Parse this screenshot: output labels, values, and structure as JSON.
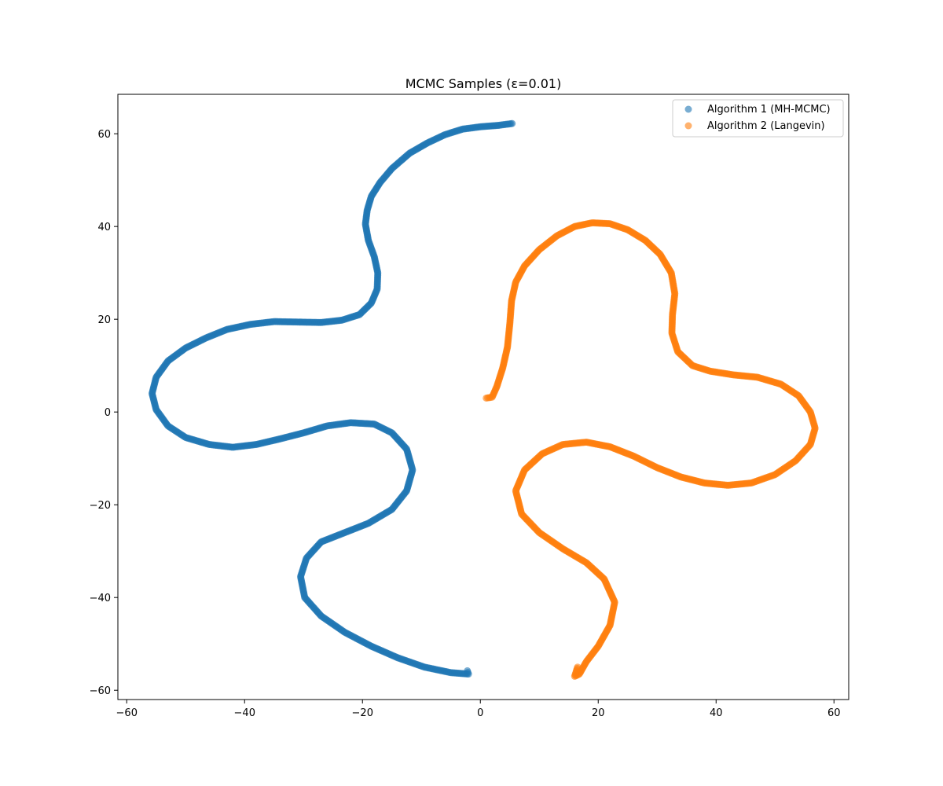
{
  "chart_data": {
    "type": "scatter",
    "title": "MCMC Samples (ε=0.01)",
    "xlabel": "",
    "ylabel": "",
    "xlim": [
      -61.5,
      62.5
    ],
    "ylim": [
      -62,
      68.5
    ],
    "xticks": [
      -60,
      -40,
      -20,
      0,
      20,
      40,
      60
    ],
    "yticks": [
      -60,
      -40,
      -20,
      0,
      20,
      40,
      60
    ],
    "xtick_labels": [
      "−60",
      "−40",
      "−20",
      "0",
      "20",
      "40",
      "60"
    ],
    "ytick_labels": [
      "−60",
      "−40",
      "−20",
      "0",
      "20",
      "40",
      "60"
    ],
    "grid": false,
    "legend_position": "top-right",
    "series": [
      {
        "name": "Algorithm 1 (MH-MCMC)",
        "color": "#1f77b4",
        "alpha": 0.6,
        "points": [
          [
            5.4,
            62.2
          ],
          [
            3.0,
            61.8
          ],
          [
            0.0,
            61.5
          ],
          [
            -3.0,
            61.0
          ],
          [
            -6.0,
            59.8
          ],
          [
            -9.0,
            58.0
          ],
          [
            -12.0,
            55.8
          ],
          [
            -15.0,
            52.5
          ],
          [
            -17.0,
            49.5
          ],
          [
            -18.5,
            46.5
          ],
          [
            -19.2,
            43.5
          ],
          [
            -19.5,
            40.5
          ],
          [
            -19.0,
            37.0
          ],
          [
            -18.0,
            33.5
          ],
          [
            -17.4,
            30.0
          ],
          [
            -17.5,
            26.5
          ],
          [
            -18.5,
            23.5
          ],
          [
            -20.5,
            21.0
          ],
          [
            -23.5,
            19.8
          ],
          [
            -27.0,
            19.3
          ],
          [
            -31.0,
            19.4
          ],
          [
            -35.0,
            19.5
          ],
          [
            -39.0,
            18.9
          ],
          [
            -43.0,
            17.8
          ],
          [
            -46.5,
            16.0
          ],
          [
            -50.0,
            13.8
          ],
          [
            -53.0,
            11.0
          ],
          [
            -55.0,
            7.5
          ],
          [
            -55.7,
            4.0
          ],
          [
            -55.0,
            0.5
          ],
          [
            -53.0,
            -3.0
          ],
          [
            -50.0,
            -5.5
          ],
          [
            -46.0,
            -7.0
          ],
          [
            -42.0,
            -7.6
          ],
          [
            -38.0,
            -7.0
          ],
          [
            -34.0,
            -5.8
          ],
          [
            -30.0,
            -4.5
          ],
          [
            -26.0,
            -3.0
          ],
          [
            -22.0,
            -2.3
          ],
          [
            -18.0,
            -2.6
          ],
          [
            -15.0,
            -4.5
          ],
          [
            -12.5,
            -8.0
          ],
          [
            -11.5,
            -12.5
          ],
          [
            -12.5,
            -17.0
          ],
          [
            -15.0,
            -21.0
          ],
          [
            -19.0,
            -24.0
          ],
          [
            -23.0,
            -26.0
          ],
          [
            -27.0,
            -28.0
          ],
          [
            -29.5,
            -31.5
          ],
          [
            -30.5,
            -35.5
          ],
          [
            -29.8,
            -40.0
          ],
          [
            -27.0,
            -44.0
          ],
          [
            -23.0,
            -47.5
          ],
          [
            -18.5,
            -50.5
          ],
          [
            -14.0,
            -53.0
          ],
          [
            -9.5,
            -55.0
          ],
          [
            -5.0,
            -56.2
          ],
          [
            -2.0,
            -56.5
          ],
          [
            -2.2,
            -55.8
          ]
        ]
      },
      {
        "name": "Algorithm 2 (Langevin)",
        "color": "#ff7f0e",
        "alpha": 0.6,
        "points": [
          [
            1.0,
            3.0
          ],
          [
            2.0,
            3.2
          ],
          [
            2.8,
            5.5
          ],
          [
            3.8,
            9.5
          ],
          [
            4.6,
            14.0
          ],
          [
            5.0,
            19.0
          ],
          [
            5.3,
            24.0
          ],
          [
            6.0,
            28.0
          ],
          [
            7.5,
            31.5
          ],
          [
            10.0,
            35.0
          ],
          [
            13.0,
            38.0
          ],
          [
            16.0,
            40.0
          ],
          [
            19.0,
            40.8
          ],
          [
            22.0,
            40.6
          ],
          [
            25.0,
            39.3
          ],
          [
            28.0,
            37.0
          ],
          [
            30.5,
            34.0
          ],
          [
            32.4,
            30.0
          ],
          [
            33.0,
            25.5
          ],
          [
            32.6,
            21.0
          ],
          [
            32.5,
            17.0
          ],
          [
            33.5,
            13.0
          ],
          [
            36.0,
            10.0
          ],
          [
            39.0,
            8.8
          ],
          [
            43.0,
            8.0
          ],
          [
            47.0,
            7.5
          ],
          [
            51.0,
            6.0
          ],
          [
            54.0,
            3.5
          ],
          [
            56.0,
            0.0
          ],
          [
            56.8,
            -3.5
          ],
          [
            56.0,
            -7.0
          ],
          [
            53.5,
            -10.5
          ],
          [
            50.0,
            -13.5
          ],
          [
            46.0,
            -15.3
          ],
          [
            42.0,
            -15.8
          ],
          [
            38.0,
            -15.3
          ],
          [
            34.0,
            -14.0
          ],
          [
            30.0,
            -12.0
          ],
          [
            26.0,
            -9.5
          ],
          [
            22.0,
            -7.5
          ],
          [
            18.0,
            -6.5
          ],
          [
            14.0,
            -7.0
          ],
          [
            10.5,
            -9.0
          ],
          [
            7.5,
            -12.5
          ],
          [
            6.0,
            -17.0
          ],
          [
            7.0,
            -22.0
          ],
          [
            10.0,
            -26.0
          ],
          [
            14.0,
            -29.5
          ],
          [
            18.0,
            -32.5
          ],
          [
            21.0,
            -36.0
          ],
          [
            22.8,
            -41.0
          ],
          [
            22.0,
            -46.0
          ],
          [
            20.0,
            -50.5
          ],
          [
            18.0,
            -53.8
          ],
          [
            16.8,
            -56.5
          ],
          [
            16.0,
            -57.0
          ],
          [
            16.5,
            -55.0
          ]
        ]
      }
    ]
  }
}
